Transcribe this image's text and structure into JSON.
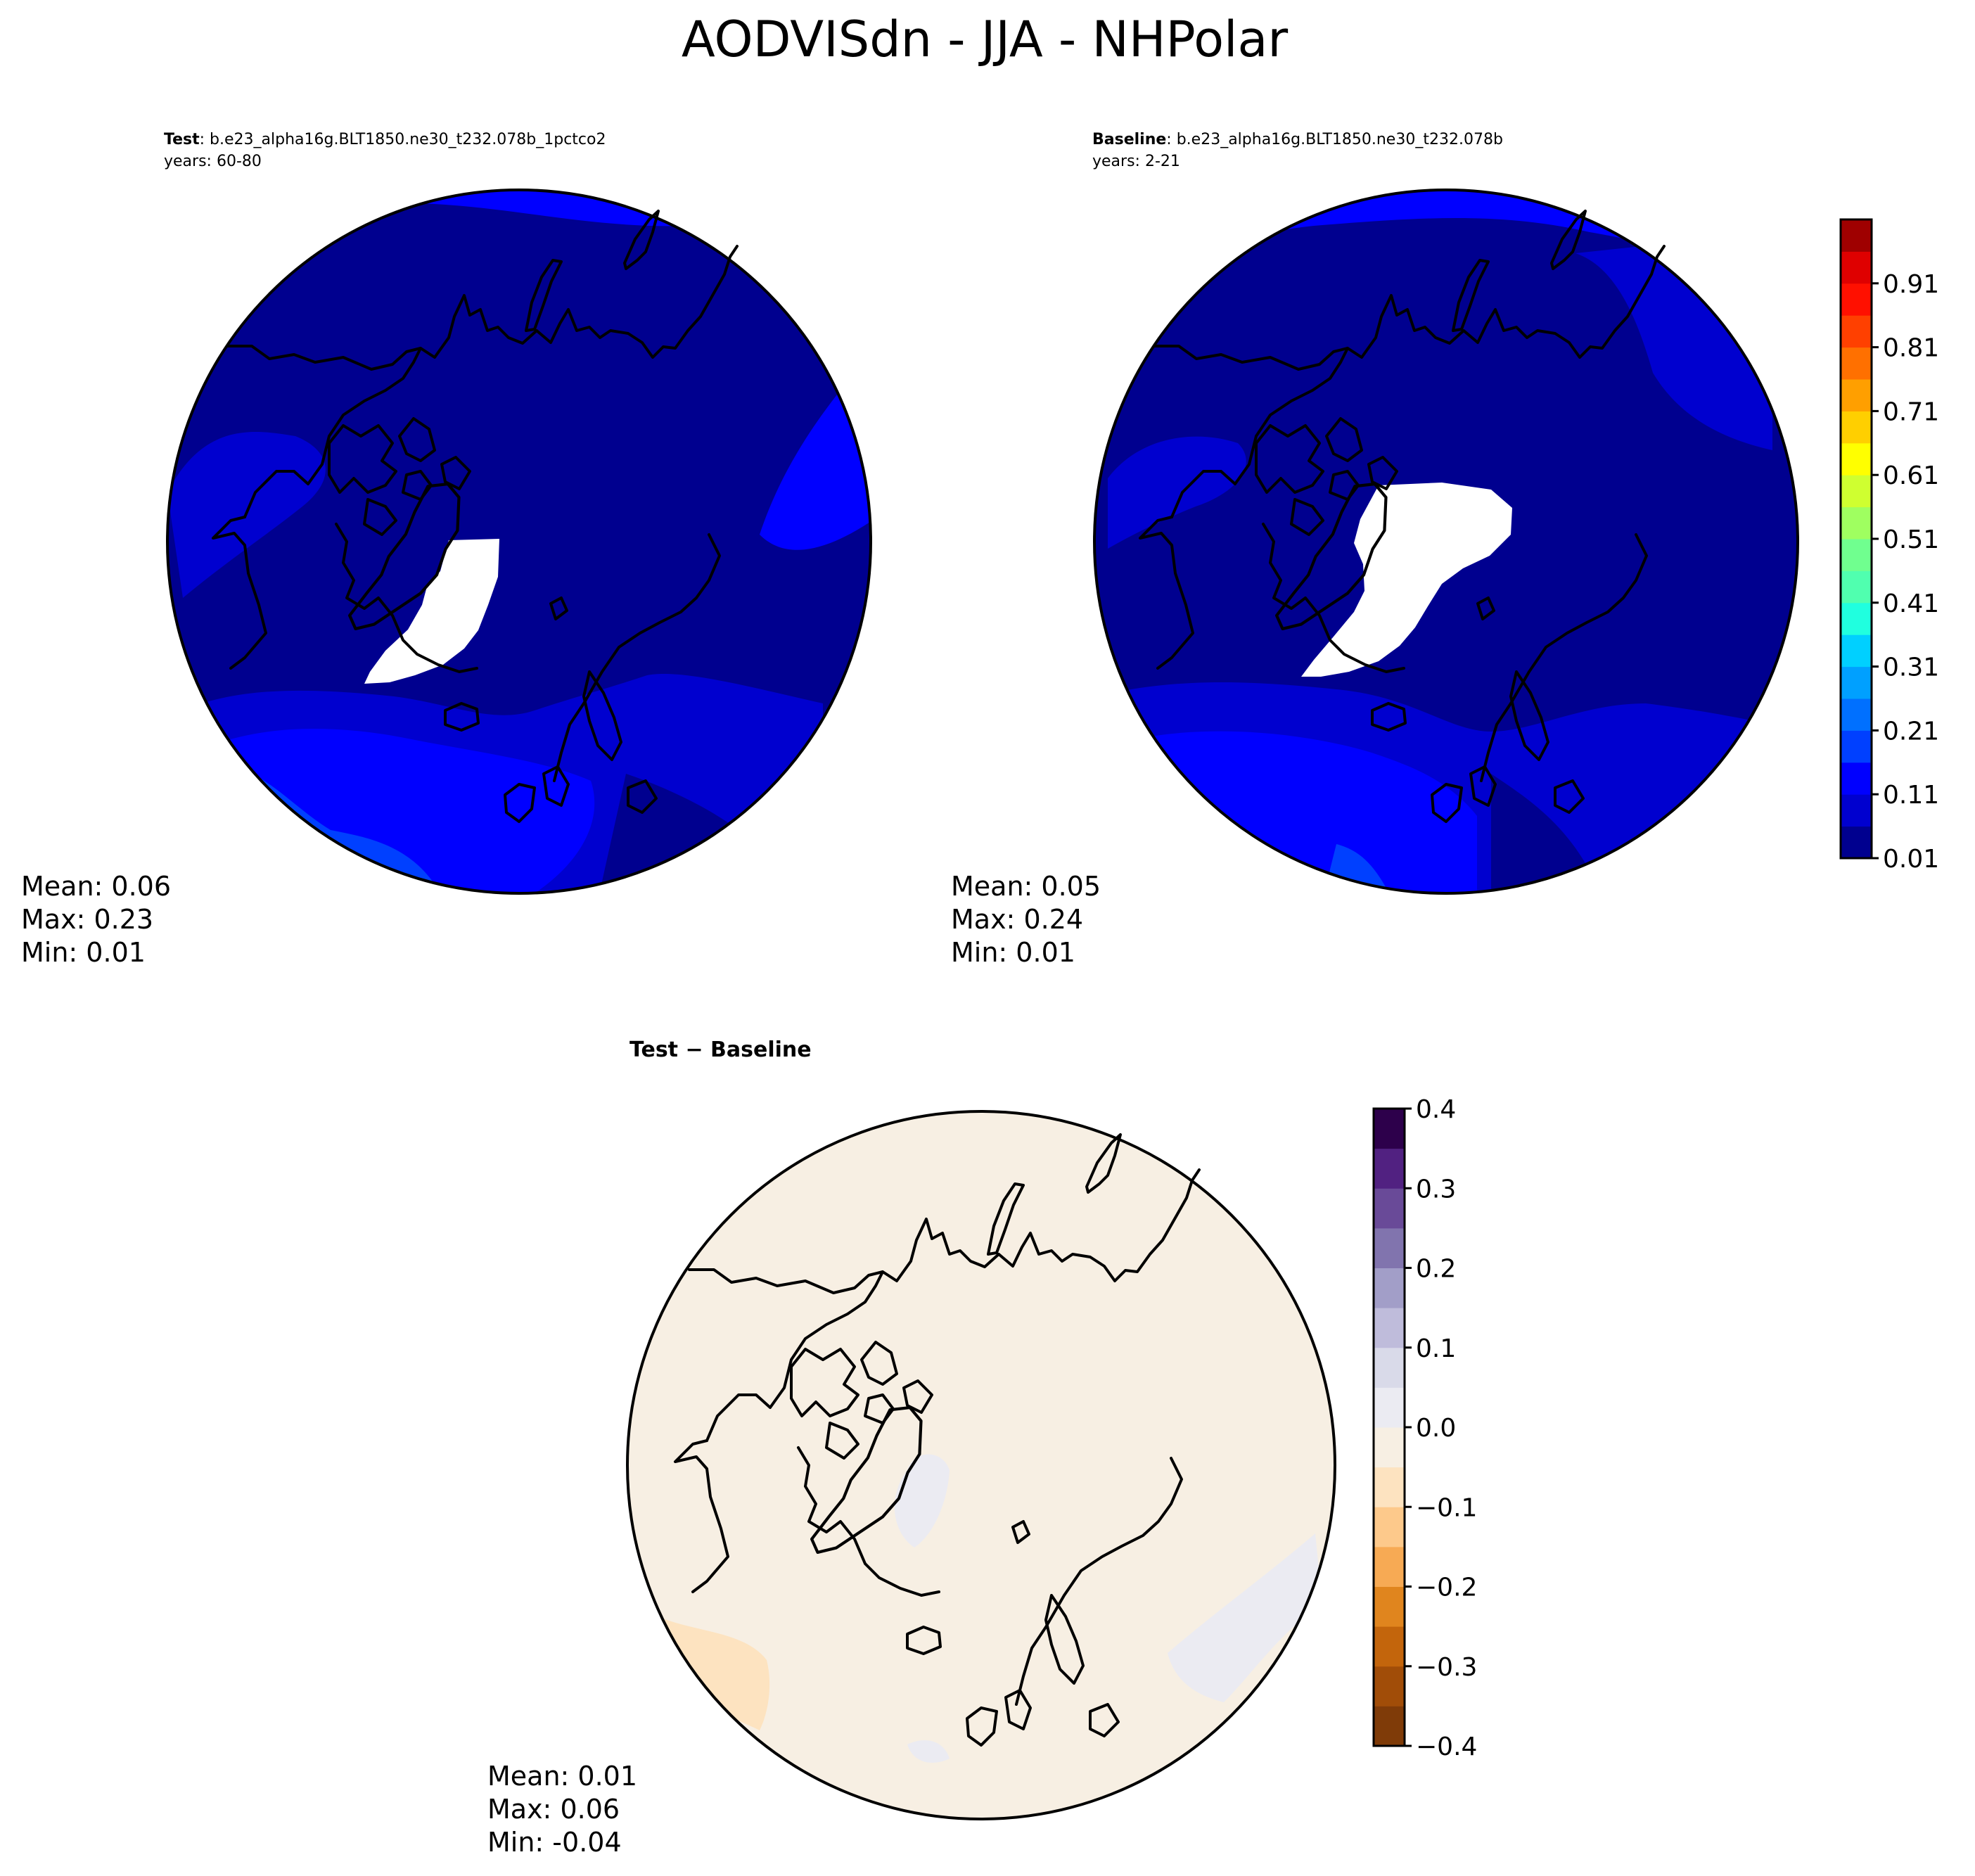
{
  "title": "AODVISdn - JJA - NHPolar",
  "panels": [
    {
      "label_bold": "Test",
      "label_rest": ": b.e23_alpha16g.BLT1850.ne30_t232.078b_1pctco2",
      "years": "years: 60-80",
      "stats": {
        "mean": "Mean:  0.06",
        "max": "Max:  0.23",
        "min": "Min:  0.01"
      }
    },
    {
      "label_bold": "Baseline",
      "label_rest": ": b.e23_alpha16g.BLT1850.ne30_t232.078b",
      "years": "years: 2-21",
      "stats": {
        "mean": "Mean:  0.05",
        "max": "Max:  0.24",
        "min": "Min:  0.01"
      }
    },
    {
      "label": "Test − Baseline",
      "stats": {
        "mean": "Mean:  0.01",
        "max": "Max:  0.06",
        "min": "Min: -0.04"
      }
    }
  ],
  "colorbars": [
    {
      "ticks": [
        "0.01",
        "0.11",
        "0.21",
        "0.31",
        "0.41",
        "0.51",
        "0.61",
        "0.71",
        "0.81",
        "0.91"
      ],
      "levels": [
        0.01,
        0.06,
        0.11,
        0.16,
        0.21,
        0.26,
        0.31,
        0.36,
        0.41,
        0.46,
        0.51,
        0.56,
        0.61,
        0.66,
        0.71,
        0.76,
        0.81,
        0.86,
        0.91,
        0.96,
        1.01
      ],
      "colors": [
        "#00008f",
        "#0000cf",
        "#0000ff",
        "#0040ff",
        "#0070ff",
        "#00a0ff",
        "#00d0ff",
        "#20ffdf",
        "#50ffaf",
        "#70ff8f",
        "#9fff60",
        "#cfff30",
        "#ffff00",
        "#ffcf00",
        "#ff9f00",
        "#ff7000",
        "#ff4000",
        "#ff1000",
        "#df0000",
        "#9f0000"
      ]
    },
    {
      "ticks": [
        "0.4",
        "0.3",
        "0.2",
        "0.1",
        "0.0",
        "−0.1",
        "−0.2",
        "−0.3",
        "−0.4"
      ],
      "colors": [
        "#7f3b08",
        "#a14d08",
        "#c3650c",
        "#e0851e",
        "#f7aa54",
        "#fdc98b",
        "#fde3c0",
        "#f7efe3",
        "#ebebf2",
        "#d9dae9",
        "#bfbcdb",
        "#a29ec8",
        "#8174ae",
        "#694a98",
        "#512181",
        "#2d004b"
      ]
    }
  ],
  "chart_data": {
    "type": "contour-map",
    "projection": "North Polar Stereographic",
    "season": "JJA",
    "variable": "AODVISdn",
    "panels": [
      {
        "name": "Test",
        "years": "60-80",
        "mean": 0.06,
        "max": 0.23,
        "min": 0.01
      },
      {
        "name": "Baseline",
        "years": "2-21",
        "mean": 0.05,
        "max": 0.24,
        "min": 0.01
      },
      {
        "name": "Test − Baseline",
        "mean": 0.01,
        "max": 0.06,
        "min": -0.04
      }
    ],
    "colorbar_main_range": [
      0.01,
      1.01
    ],
    "colorbar_diff_range": [
      -0.4,
      0.4
    ]
  }
}
